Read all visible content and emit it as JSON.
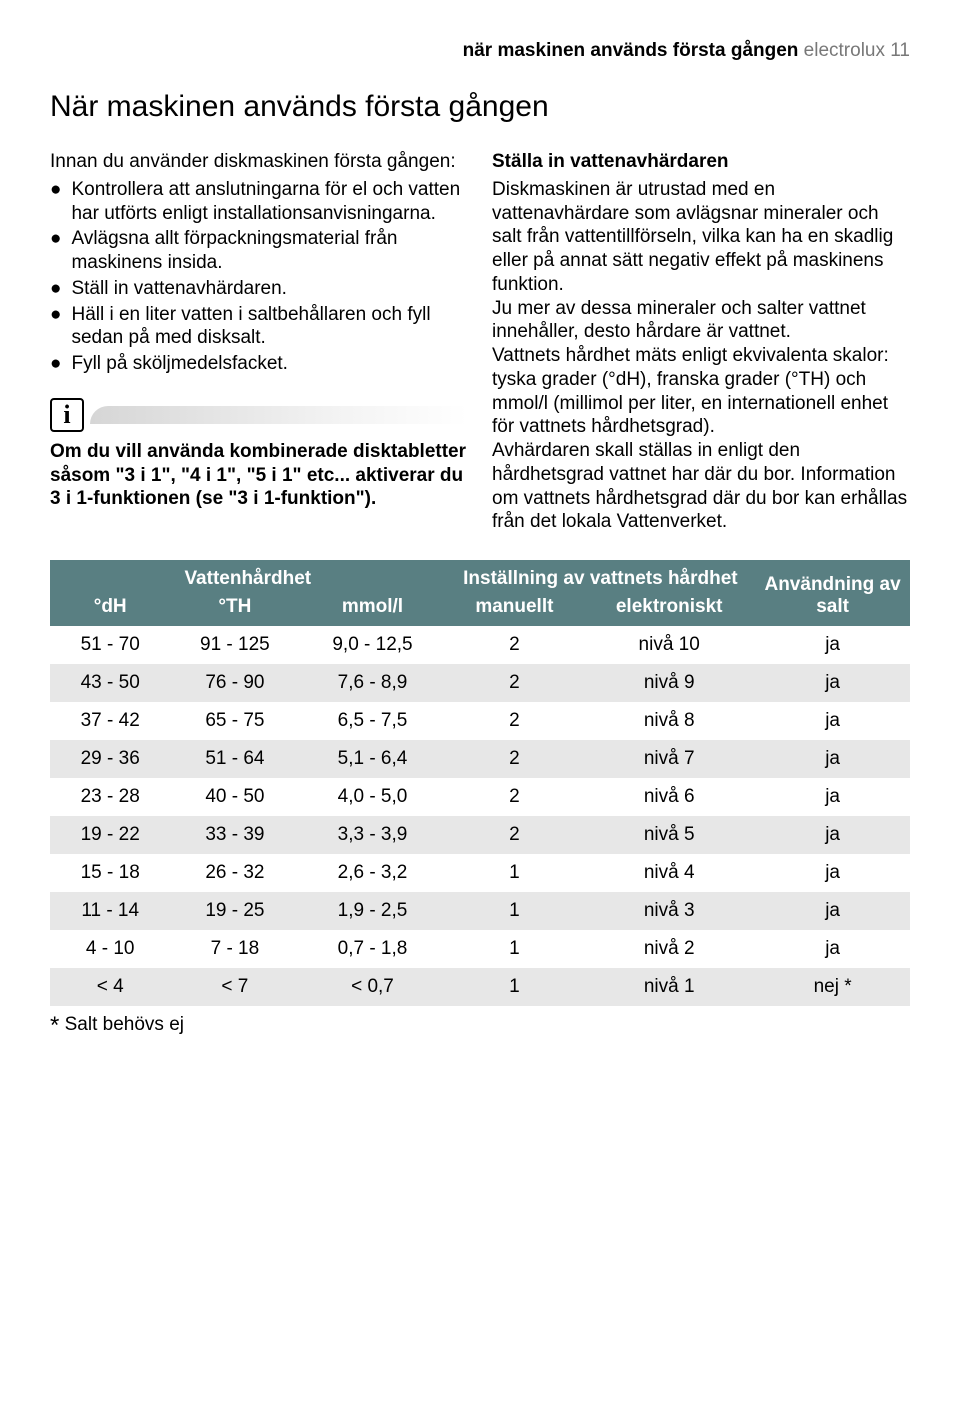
{
  "header": {
    "bold": "när maskinen används första gången",
    "light": " electrolux 11"
  },
  "title": "När maskinen används första gången",
  "left": {
    "intro": "Innan du använder diskmaskinen första gången:",
    "bullets": [
      "Kontrollera att anslutningarna för el och vatten har utförts enligt installationsanvisningarna.",
      "Avlägsna allt förpackningsmaterial från maskinens insida.",
      "Ställ in vattenavhärdaren.",
      "Häll i en liter vatten i saltbehållaren och fyll sedan på med disksalt.",
      "Fyll på sköljmedelsfacket."
    ],
    "info_glyph": "i",
    "info_text": "Om du vill använda kombinerade disktabletter såsom \"3 i 1\", \"4 i 1\", \"5 i 1\" etc... aktiverar du 3 i 1-funktionen (se \"3 i 1-funktion\")."
  },
  "right": {
    "subhead": "Ställa in vattenavhärdaren",
    "body": "Diskmaskinen är utrustad med en vattenavhärdare som avlägsnar mineraler och salt från vattentillförseln, vilka kan ha en skadlig eller på annat sätt negativ effekt på maskinens funktion.\nJu mer av dessa mineraler och salter vattnet innehåller, desto hårdare är vattnet.\nVattnets hårdhet mäts enligt ekvivalenta skalor: tyska grader (°dH), franska grader (°TH) och mmol/l (millimol per liter, en internationell enhet för vattnets hårdhetsgrad).\nAvhärdaren skall ställas in enligt den hårdhetsgrad vattnet har där du bor. Information om vattnets hårdhetsgrad där du bor kan erhållas från det lokala Vattenverket."
  },
  "table": {
    "header_bg": "#597f82",
    "header_fg": "#ffffff",
    "row_even_bg": "#e7e7e7",
    "row_odd_bg": "#ffffff",
    "top_headers": {
      "hardness": "Vattenhårdhet",
      "setting": "Inställning av vattnets hårdhet",
      "salt": "Användning av salt"
    },
    "sub_headers": [
      "°dH",
      "°TH",
      "mmol/l",
      "manuellt",
      "elektroniskt"
    ],
    "rows": [
      [
        "51 - 70",
        "91 - 125",
        "9,0 - 12,5",
        "2",
        "nivå 10",
        "ja"
      ],
      [
        "43 - 50",
        "76 - 90",
        "7,6 - 8,9",
        "2",
        "nivå 9",
        "ja"
      ],
      [
        "37 - 42",
        "65 - 75",
        "6,5 - 7,5",
        "2",
        "nivå 8",
        "ja"
      ],
      [
        "29 - 36",
        "51 - 64",
        "5,1 - 6,4",
        "2",
        "nivå 7",
        "ja"
      ],
      [
        "23 - 28",
        "40 - 50",
        "4,0 - 5,0",
        "2",
        "nivå 6",
        "ja"
      ],
      [
        "19 - 22",
        "33 - 39",
        "3,3 - 3,9",
        "2",
        "nivå 5",
        "ja"
      ],
      [
        "15 - 18",
        "26 - 32",
        "2,6 - 3,2",
        "1",
        "nivå 4",
        "ja"
      ],
      [
        "11 - 14",
        "19 - 25",
        "1,9 - 2,5",
        "1",
        "nivå 3",
        "ja"
      ],
      [
        "4 - 10",
        "7 - 18",
        "0,7 - 1,8",
        "1",
        "nivå 2",
        "ja"
      ],
      [
        "< 4",
        "< 7",
        "< 0,7",
        "1",
        "nivå 1",
        "nej *"
      ]
    ]
  },
  "footnote": {
    "star": "*",
    "text": " Salt behövs ej"
  }
}
